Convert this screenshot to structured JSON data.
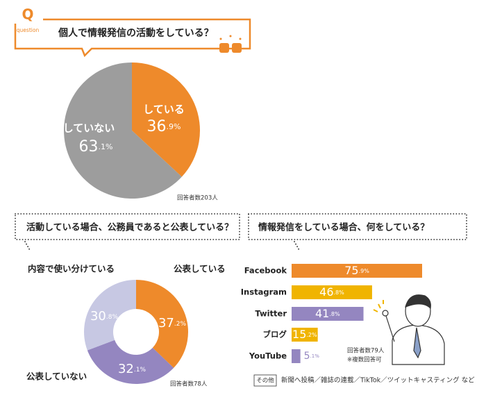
{
  "header": {
    "q": "Q",
    "question": "question"
  },
  "chart_data": [
    {
      "type": "pie",
      "title": "個人で情報発信の活動をしている？",
      "categories": [
        "している",
        "していない"
      ],
      "values": [
        36.9,
        63.1
      ],
      "value_labels": [
        "36.9%",
        "63.1%"
      ],
      "colors": [
        "#ee8a2b",
        "#9d9d9d"
      ],
      "note": "回答者数203人"
    },
    {
      "type": "donut",
      "title": "活動している場合、公務員であると公表している？",
      "categories": [
        "公表している",
        "公表していない",
        "内容で使い分けている"
      ],
      "values": [
        37.2,
        32.1,
        30.8
      ],
      "value_labels": [
        "37.2%",
        "32.1%",
        "30.8%"
      ],
      "colors": [
        "#ee8a2b",
        "#9486c0",
        "#c7c8e3"
      ],
      "note": "回答者数78人"
    },
    {
      "type": "bar",
      "title": "情報発信をしている場合、何をしている？",
      "categories": [
        "Facebook",
        "Instagram",
        "Twitter",
        "ブログ",
        "YouTube"
      ],
      "values": [
        75.9,
        46.8,
        41.8,
        15.2,
        5.1
      ],
      "value_labels": [
        "75.9%",
        "46.8%",
        "41.8%",
        "15.2%",
        "5.1%"
      ],
      "colors": [
        "#ee8a2b",
        "#f0b400",
        "#9486c0",
        "#f0b400",
        "#9486c0"
      ],
      "notes": [
        "回答者数79人",
        "※複数回答可"
      ],
      "other": {
        "label": "その他",
        "text": "新聞へ投稿／雑誌の連載／TikTok／ツイットキャスティング など"
      }
    }
  ]
}
